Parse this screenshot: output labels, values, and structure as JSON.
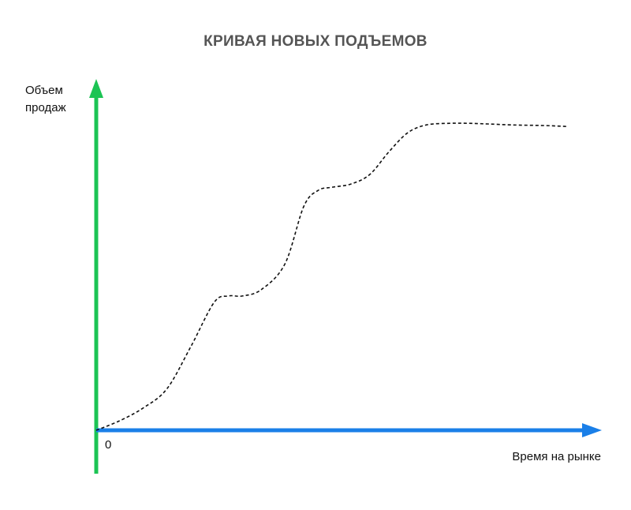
{
  "chart_data": {
    "type": "line",
    "title": "КРИВАЯ НОВЫХ ПОДЪЕМОВ",
    "xlabel": "Время на рынке",
    "ylabel": "Объем продаж",
    "origin_label": "0",
    "xlim": [
      0,
      100
    ],
    "ylim": [
      0,
      100
    ],
    "grid": false,
    "series": [
      {
        "x": [
          0,
          5,
          10,
          15,
          20,
          25,
          28,
          31,
          35,
          40,
          44,
          47,
          50,
          54,
          58,
          62,
          66,
          70,
          75,
          79,
          83,
          88,
          95,
          100
        ],
        "y": [
          0,
          3,
          7,
          13,
          26,
          40,
          42,
          42,
          44,
          52,
          70,
          75,
          76,
          77,
          80,
          87,
          93,
          95.5,
          96,
          96,
          95.8,
          95.5,
          95.3,
          95
        ],
        "style": "dashed",
        "color": "#111111"
      }
    ],
    "axis_colors": {
      "y": "#1cc454",
      "x": "#1a7fe8"
    }
  }
}
